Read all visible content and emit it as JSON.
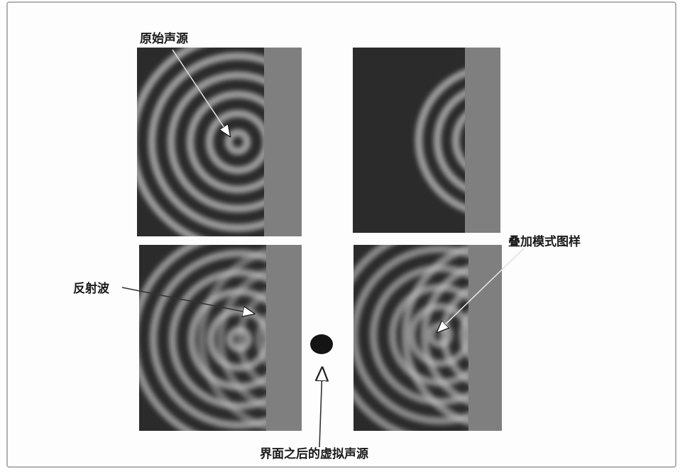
{
  "labels": {
    "original_source": "原始声源",
    "superposition_pattern": "叠加模式图样",
    "reflected_wave": "反射波",
    "virtual_source": "界面之后的虚拟声源"
  },
  "colors": {
    "background": "#ffffff",
    "panel": "#2b2b2b",
    "wall": "#7f7f7f",
    "wave": "#c4c4c4",
    "source_dot": "#141414"
  }
}
